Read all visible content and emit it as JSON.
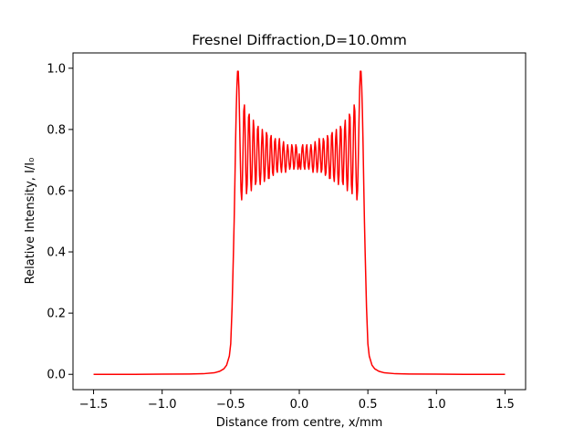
{
  "chart_data": {
    "type": "line",
    "title": "Fresnel Diffraction,D=10.0mm",
    "xlabel": "Distance from centre, x/mm",
    "ylabel": "Relative Intensity, I/I₀",
    "xlim": [
      -1.65,
      1.65
    ],
    "ylim": [
      -0.05,
      1.05
    ],
    "xticks": [
      -1.5,
      -1.0,
      -0.5,
      0.0,
      0.5,
      1.0,
      1.5
    ],
    "xtick_labels": [
      "−1.5",
      "−1.0",
      "−0.5",
      "0.0",
      "0.5",
      "1.0",
      "1.5"
    ],
    "yticks": [
      0.0,
      0.2,
      0.4,
      0.6,
      0.8,
      1.0
    ],
    "ytick_labels": [
      "0.0",
      "0.2",
      "0.4",
      "0.6",
      "0.8",
      "1.0"
    ],
    "grid": false,
    "series": [
      {
        "color": "#ff0000",
        "x": [
          -1.5,
          -1.2,
          -1.0,
          -0.8,
          -0.7,
          -0.62,
          -0.58,
          -0.55,
          -0.53,
          -0.51,
          -0.5,
          -0.49,
          -0.48,
          -0.475,
          -0.47,
          -0.465,
          -0.46,
          -0.455,
          -0.45,
          -0.445,
          -0.44,
          -0.435,
          -0.43,
          -0.425,
          -0.42,
          -0.415,
          -0.41,
          -0.405,
          -0.4,
          -0.395,
          -0.39,
          -0.385,
          -0.38,
          -0.375,
          -0.37,
          -0.365,
          -0.36,
          -0.355,
          -0.35,
          -0.345,
          -0.34,
          -0.335,
          -0.33,
          -0.325,
          -0.32,
          -0.315,
          -0.31,
          -0.305,
          -0.3,
          -0.295,
          -0.29,
          -0.285,
          -0.28,
          -0.275,
          -0.27,
          -0.265,
          -0.26,
          -0.255,
          -0.25,
          -0.245,
          -0.24,
          -0.235,
          -0.23,
          -0.225,
          -0.22,
          -0.215,
          -0.21,
          -0.205,
          -0.2,
          -0.195,
          -0.19,
          -0.185,
          -0.18,
          -0.175,
          -0.17,
          -0.165,
          -0.16,
          -0.155,
          -0.15,
          -0.145,
          -0.14,
          -0.135,
          -0.13,
          -0.125,
          -0.12,
          -0.115,
          -0.11,
          -0.105,
          -0.1,
          -0.095,
          -0.09,
          -0.085,
          -0.08,
          -0.075,
          -0.07,
          -0.065,
          -0.06,
          -0.055,
          -0.05,
          -0.045,
          -0.04,
          -0.035,
          -0.03,
          -0.025,
          -0.02,
          -0.015,
          -0.01,
          -0.005,
          0.0,
          0.005,
          0.01,
          0.015,
          0.02,
          0.025,
          0.03,
          0.035,
          0.04,
          0.045,
          0.05,
          0.055,
          0.06,
          0.065,
          0.07,
          0.075,
          0.08,
          0.085,
          0.09,
          0.095,
          0.1,
          0.105,
          0.11,
          0.115,
          0.12,
          0.125,
          0.13,
          0.135,
          0.14,
          0.145,
          0.15,
          0.155,
          0.16,
          0.165,
          0.17,
          0.175,
          0.18,
          0.185,
          0.19,
          0.195,
          0.2,
          0.205,
          0.21,
          0.215,
          0.22,
          0.225,
          0.23,
          0.235,
          0.24,
          0.245,
          0.25,
          0.255,
          0.26,
          0.265,
          0.27,
          0.275,
          0.28,
          0.285,
          0.29,
          0.295,
          0.3,
          0.305,
          0.31,
          0.315,
          0.32,
          0.325,
          0.33,
          0.335,
          0.34,
          0.345,
          0.35,
          0.355,
          0.36,
          0.365,
          0.37,
          0.375,
          0.38,
          0.385,
          0.39,
          0.395,
          0.4,
          0.405,
          0.41,
          0.415,
          0.42,
          0.425,
          0.43,
          0.435,
          0.44,
          0.445,
          0.45,
          0.455,
          0.46,
          0.465,
          0.47,
          0.475,
          0.48,
          0.49,
          0.5,
          0.51,
          0.53,
          0.55,
          0.58,
          0.62,
          0.7,
          0.8,
          1.0,
          1.2,
          1.5
        ],
        "y": [
          0.0,
          0.0,
          0.0005,
          0.001,
          0.002,
          0.005,
          0.01,
          0.018,
          0.03,
          0.06,
          0.1,
          0.22,
          0.4,
          0.5,
          0.62,
          0.75,
          0.86,
          0.94,
          0.99,
          0.99,
          0.93,
          0.82,
          0.7,
          0.6,
          0.57,
          0.63,
          0.74,
          0.86,
          0.88,
          0.8,
          0.66,
          0.59,
          0.62,
          0.73,
          0.84,
          0.85,
          0.76,
          0.64,
          0.6,
          0.65,
          0.76,
          0.83,
          0.8,
          0.7,
          0.62,
          0.63,
          0.71,
          0.8,
          0.81,
          0.74,
          0.65,
          0.62,
          0.66,
          0.75,
          0.8,
          0.77,
          0.68,
          0.63,
          0.65,
          0.73,
          0.79,
          0.78,
          0.7,
          0.64,
          0.64,
          0.7,
          0.77,
          0.78,
          0.72,
          0.66,
          0.65,
          0.69,
          0.76,
          0.77,
          0.73,
          0.67,
          0.66,
          0.7,
          0.75,
          0.77,
          0.73,
          0.68,
          0.66,
          0.69,
          0.74,
          0.76,
          0.73,
          0.68,
          0.66,
          0.68,
          0.73,
          0.75,
          0.73,
          0.69,
          0.67,
          0.68,
          0.72,
          0.75,
          0.74,
          0.7,
          0.67,
          0.68,
          0.72,
          0.75,
          0.74,
          0.7,
          0.67,
          0.68,
          0.72,
          0.68,
          0.67,
          0.7,
          0.74,
          0.75,
          0.72,
          0.68,
          0.67,
          0.7,
          0.74,
          0.75,
          0.72,
          0.68,
          0.67,
          0.69,
          0.73,
          0.75,
          0.73,
          0.68,
          0.66,
          0.68,
          0.73,
          0.76,
          0.74,
          0.69,
          0.66,
          0.68,
          0.73,
          0.77,
          0.75,
          0.7,
          0.66,
          0.67,
          0.73,
          0.77,
          0.76,
          0.69,
          0.65,
          0.66,
          0.72,
          0.78,
          0.77,
          0.7,
          0.64,
          0.64,
          0.7,
          0.78,
          0.79,
          0.73,
          0.65,
          0.63,
          0.68,
          0.77,
          0.8,
          0.75,
          0.66,
          0.62,
          0.65,
          0.74,
          0.81,
          0.8,
          0.71,
          0.63,
          0.62,
          0.7,
          0.8,
          0.83,
          0.76,
          0.65,
          0.6,
          0.64,
          0.76,
          0.85,
          0.84,
          0.73,
          0.62,
          0.59,
          0.66,
          0.8,
          0.88,
          0.86,
          0.74,
          0.63,
          0.57,
          0.6,
          0.7,
          0.82,
          0.93,
          0.99,
          0.99,
          0.94,
          0.86,
          0.75,
          0.62,
          0.5,
          0.4,
          0.22,
          0.1,
          0.06,
          0.03,
          0.018,
          0.01,
          0.005,
          0.002,
          0.001,
          0.0005,
          0.0,
          0.0
        ]
      }
    ]
  }
}
